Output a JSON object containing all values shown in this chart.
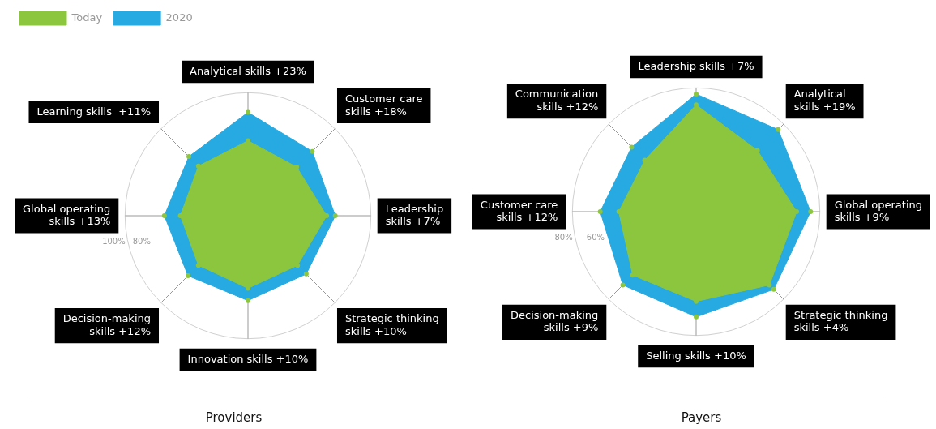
{
  "chart_data": [
    {
      "type": "radar",
      "title": "Providers",
      "categories": [
        "Analytical skills +23%",
        "Customer care\nskills +18%",
        "Leadership\nskills +7%",
        "Strategic thinking\nskills +10%",
        "Innovation skills +10%",
        "Decision-making\nskills +12%",
        "Global operating\nskills +13%",
        "Learning skills  +11%"
      ],
      "series": [
        {
          "name": "Today",
          "color": "#8cc63f",
          "values": [
            61,
            56,
            64,
            57,
            59,
            57,
            55,
            57
          ]
        },
        {
          "name": "2020",
          "color": "#27aae1",
          "values": [
            84,
            74,
            71,
            67,
            69,
            69,
            68,
            68
          ]
        }
      ],
      "ylim": [
        0,
        100
      ],
      "yticks": [
        {
          "value": 80,
          "label": "80%"
        },
        {
          "value": 100,
          "label": "100%"
        }
      ],
      "grid": true,
      "legend": "top left",
      "marker": "circle"
    },
    {
      "type": "radar",
      "title": "Payers",
      "categories": [
        "Leadership skills +7%",
        "Analytical\nskills +19%",
        "Global operating\nskills +9%",
        "Strategic thinking\nskills +4%",
        "Selling skills +10%",
        "Decision-making\nskills +9%",
        "Customer care\nskills +12%",
        "Communication\nskills +12%"
      ],
      "series": [
        {
          "color": "#8cc63f",
          "values": [
            69,
            56,
            65,
            67,
            58,
            58,
            50,
            47
          ]
        },
        {
          "color": "#27aae1",
          "values": [
            76,
            75,
            74,
            71,
            68,
            67,
            62,
            59
          ]
        }
      ],
      "ylim": [
        0,
        80
      ],
      "yticks": [
        {
          "value": 60,
          "label": "60%"
        },
        {
          "value": 80,
          "label": "80%"
        }
      ],
      "grid": true,
      "legend": false,
      "marker": "circle"
    }
  ]
}
